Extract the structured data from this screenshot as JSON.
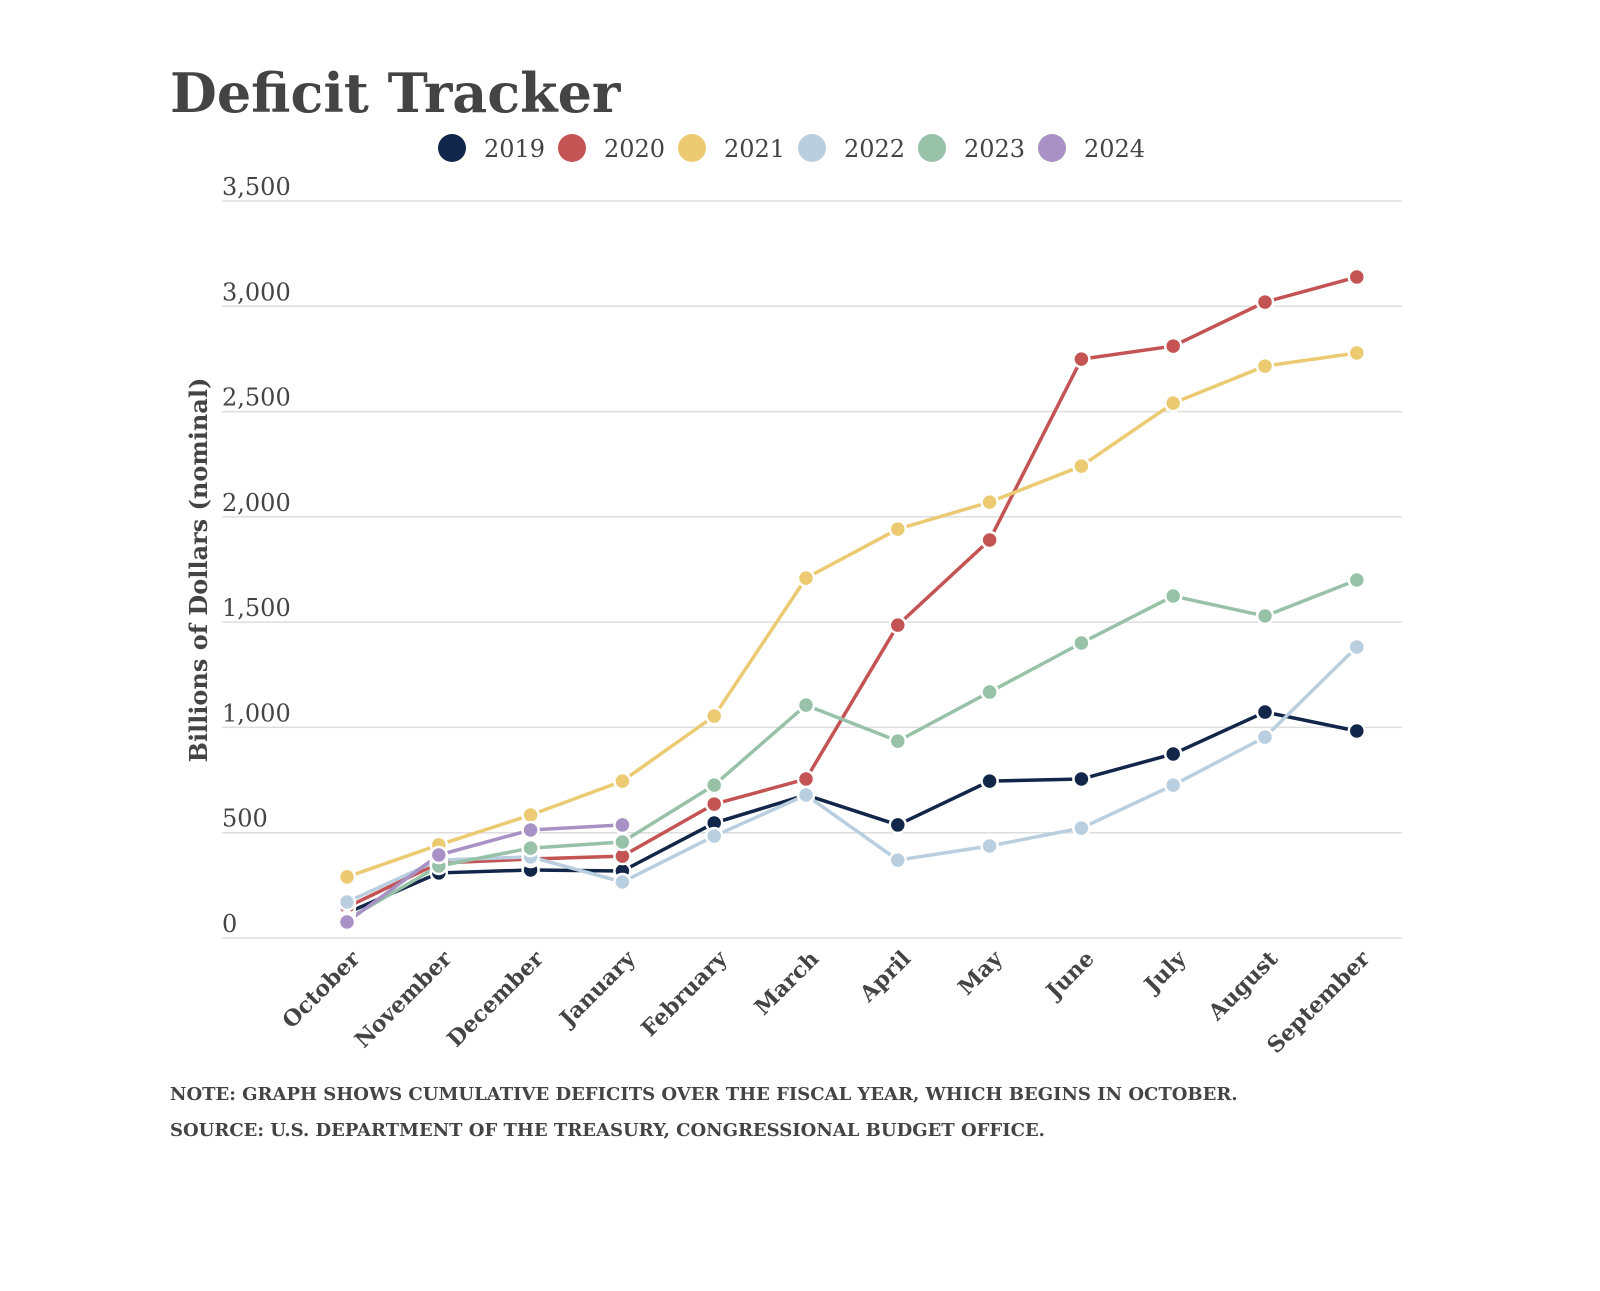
{
  "chart_data": {
    "type": "line",
    "title": "Deficit Tracker",
    "y_label": "Billions of Dollars (nominal)",
    "notes": [
      "NOTE: GRAPH SHOWS CUMULATIVE DEFICITS OVER THE FISCAL YEAR, WHICH BEGINS IN OCTOBER.",
      "SOURCE: U.S. DEPARTMENT OF THE TREASURY, CONGRESSIONAL BUDGET OFFICE."
    ],
    "categories": [
      "October",
      "November",
      "December",
      "January",
      "February",
      "March",
      "April",
      "May",
      "June",
      "July",
      "August",
      "September"
    ],
    "ylim": [
      0,
      3500
    ],
    "yticks": [
      0,
      500,
      {
        "value": 1000,
        "label": "1,000"
      },
      {
        "value": 1500,
        "label": "1,500"
      },
      {
        "value": 2000,
        "label": "2,000"
      },
      {
        "value": 2500,
        "label": "2,500"
      },
      {
        "value": 3000,
        "label": "3,000"
      },
      {
        "value": 3500,
        "label": "3,500"
      }
    ],
    "grid": true,
    "legend": "top",
    "series": [
      {
        "name": "2019",
        "color": "#12264a",
        "values": [
          119,
          309,
          323,
          318,
          546,
          679,
          537,
          745,
          755,
          874,
          1073,
          983
        ]
      },
      {
        "name": "2020",
        "color": "#c45353",
        "values": [
          147,
          356,
          375,
          389,
          636,
          755,
          1486,
          1890,
          2749,
          2811,
          3020,
          3139
        ]
      },
      {
        "name": "2021",
        "color": "#ecca72",
        "values": [
          290,
          442,
          584,
          745,
          1054,
          1709,
          1942,
          2070,
          2241,
          2540,
          2716,
          2778
        ]
      },
      {
        "name": "2022",
        "color": "#b9cfe0",
        "values": [
          171,
          370,
          385,
          266,
          484,
          679,
          370,
          437,
          522,
          726,
          954,
          1382
        ]
      },
      {
        "name": "2023",
        "color": "#97c2a8",
        "values": [
          88,
          342,
          427,
          456,
          726,
          1106,
          935,
          1168,
          1401,
          1624,
          1529,
          1700
        ]
      },
      {
        "name": "2024",
        "color": "#a891c4",
        "values": [
          76,
          394,
          513,
          537,
          null,
          null,
          null,
          null,
          null,
          null,
          null,
          null
        ]
      }
    ]
  }
}
